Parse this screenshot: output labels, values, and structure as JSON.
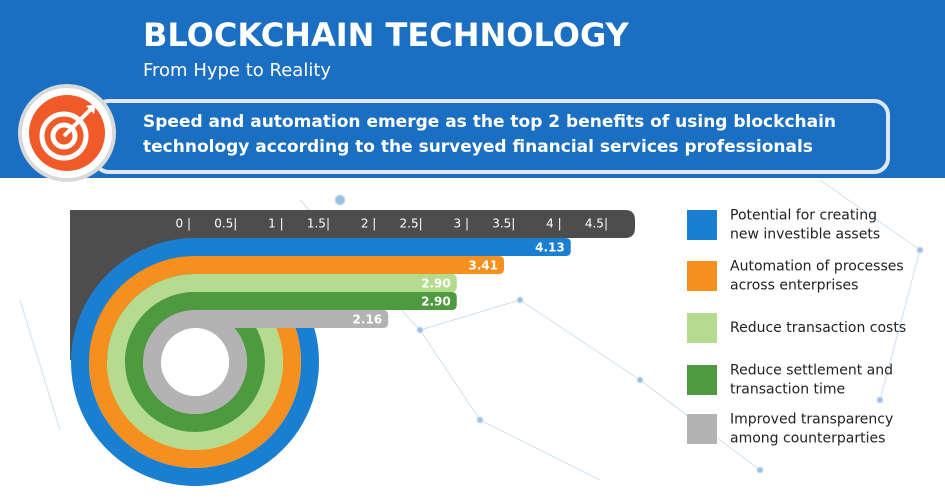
{
  "title": "BLOCKCHAIN TECHNOLOGY",
  "subtitle": "From Hype to Reality",
  "headline": {
    "parts": [
      "Speed and automation emerge as the ",
      "top 2",
      " benefits of using blockchain",
      "technology according to the surveyed financial services professionals"
    ]
  },
  "chart_data": {
    "type": "bar",
    "categories": [
      [
        "Potential for creating",
        "new investible assets"
      ],
      [
        "Automation of processes",
        "across enterprises"
      ],
      [
        "Reduce transaction costs"
      ],
      [
        "Reduce settlement and",
        "transaction time"
      ],
      [
        "Improved transparency",
        "among counterparties"
      ]
    ],
    "values": [
      4.13,
      3.41,
      2.9,
      2.9,
      2.16
    ],
    "value_labels": [
      "4.13",
      "3.41",
      "2.90",
      "2.90",
      "2.16"
    ],
    "colors": [
      "#1a7fd0",
      "#f5901e",
      "#b5dc8e",
      "#4e9a3f",
      "#b3b3b3"
    ],
    "xlim": [
      0,
      4.5
    ],
    "xticks": [
      {
        "value": 0,
        "label": "0 |"
      },
      {
        "value": 0.5,
        "label": "0.5|"
      },
      {
        "value": 1,
        "label": "1 |"
      },
      {
        "value": 1.5,
        "label": "1.5|"
      },
      {
        "value": 2,
        "label": "2 |"
      },
      {
        "value": 2.5,
        "label": "2.5|"
      },
      {
        "value": 3,
        "label": "3 |"
      },
      {
        "value": 3.5,
        "label": "3.5|"
      },
      {
        "value": 4,
        "label": "4 |"
      },
      {
        "value": 4.5,
        "label": "4.5|"
      }
    ]
  }
}
